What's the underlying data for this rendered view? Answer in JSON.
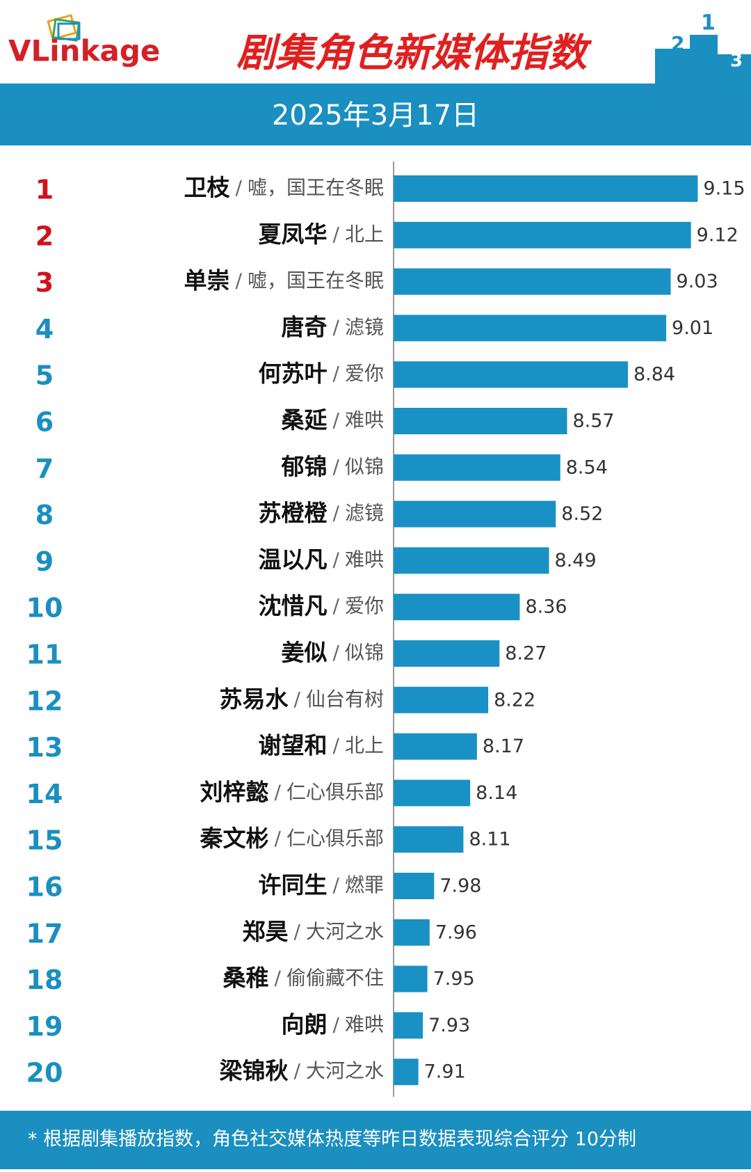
{
  "header": {
    "logo": "VLinkage"
  },
  "chart_data": {
    "type": "bar",
    "orientation": "horizontal",
    "title": "剧集角色新媒体指数",
    "subtitle": "2025年3月17日",
    "ranks": [
      1,
      2,
      3,
      4,
      5,
      6,
      7,
      8,
      9,
      10,
      11,
      12,
      13,
      14,
      15,
      16,
      17,
      18,
      19,
      20
    ],
    "rank_colors": [
      "#d0121b",
      "#d0121b",
      "#d0121b",
      "#1a8fc0",
      "#1a8fc0",
      "#1a8fc0",
      "#1a8fc0",
      "#1a8fc0",
      "#1a8fc0",
      "#1a8fc0",
      "#1a8fc0",
      "#1a8fc0",
      "#1a8fc0",
      "#1a8fc0",
      "#1a8fc0",
      "#1a8fc0",
      "#1a8fc0",
      "#1a8fc0",
      "#1a8fc0",
      "#1a8fc0"
    ],
    "separator": "/",
    "categories": [
      "卫枝",
      "夏凤华",
      "单崇",
      "唐奇",
      "何苏叶",
      "桑延",
      "郁锦",
      "苏橙橙",
      "温以凡",
      "沈惜凡",
      "姜似",
      "苏易水",
      "谢望和",
      "刘梓懿",
      "秦文彬",
      "许同生",
      "郑昊",
      "桑稚",
      "向朗",
      "梁锦秋"
    ],
    "dramas": [
      "嘘，国王在冬眠",
      "北上",
      "嘘，国王在冬眠",
      "滤镜",
      "爱你",
      "难哄",
      "似锦",
      "滤镜",
      "难哄",
      "爱你",
      "似锦",
      "仙台有树",
      "北上",
      "仁心俱乐部",
      "仁心俱乐部",
      "燃罪",
      "大河之水",
      "偷偷藏不住",
      "难哄",
      "大河之水"
    ],
    "values": [
      9.15,
      9.12,
      9.03,
      9.01,
      8.84,
      8.57,
      8.54,
      8.52,
      8.49,
      8.36,
      8.27,
      8.22,
      8.17,
      8.14,
      8.11,
      7.98,
      7.96,
      7.95,
      7.93,
      7.91
    ],
    "color": "#1a91c4",
    "xlim": [
      7.8,
      9.3
    ]
  },
  "footer": {
    "note": "* 根据剧集播放指数，角色社交媒体热度等昨日数据表现综合评分 10分制"
  }
}
